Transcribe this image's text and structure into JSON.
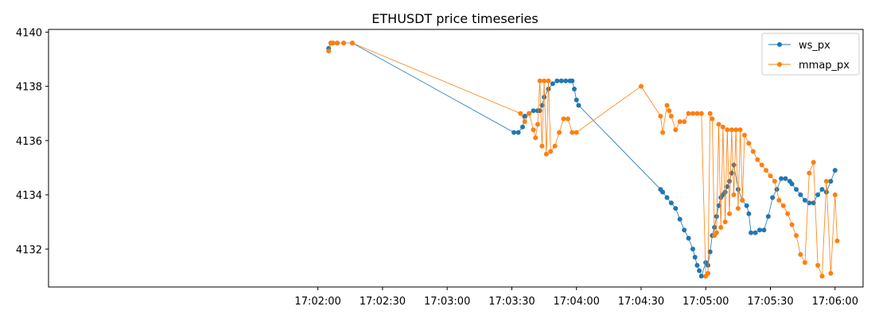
{
  "chart_data": {
    "type": "line",
    "title": "ETHUSDT price timeseries",
    "xlabel": "",
    "ylabel": "",
    "x_ticks": [
      "17:02:00",
      "17:02:30",
      "17:03:00",
      "17:03:30",
      "17:04:00",
      "17:04:30",
      "17:05:00",
      "17:05:30",
      "17:06:00"
    ],
    "y_ticks": [
      4132,
      4134,
      4136,
      4138,
      4140
    ],
    "xlim": [
      "16:59:55",
      "17:06:13"
    ],
    "ylim": [
      4130.6,
      4140.1
    ],
    "grid": false,
    "legend_position": "top-right",
    "colors": {
      "ws_px": "#1f77b4",
      "mmap_px": "#ff7f0e"
    },
    "series": [
      {
        "name": "ws_px",
        "x": [
          "17:02:05",
          "17:02:06",
          "17:02:07",
          "17:02:09",
          "17:02:12",
          "17:02:16",
          "17:03:31",
          "17:03:33",
          "17:03:35",
          "17:03:36",
          "17:03:38",
          "17:03:40",
          "17:03:42",
          "17:03:43",
          "17:03:44",
          "17:03:45",
          "17:03:47",
          "17:03:49",
          "17:03:51",
          "17:03:53",
          "17:03:55",
          "17:03:57",
          "17:03:58",
          "17:03:59",
          "17:04:00",
          "17:04:01",
          "17:04:39",
          "17:04:40",
          "17:04:42",
          "17:04:44",
          "17:04:46",
          "17:04:48",
          "17:04:50",
          "17:04:52",
          "17:04:54",
          "17:04:55",
          "17:04:56",
          "17:04:57",
          "17:04:58",
          "17:05:00",
          "17:05:01",
          "17:05:02",
          "17:05:03",
          "17:05:04",
          "17:05:05",
          "17:05:06",
          "17:05:07",
          "17:05:08",
          "17:05:09",
          "17:05:10",
          "17:05:11",
          "17:05:12",
          "17:05:13",
          "17:05:15",
          "17:05:17",
          "17:05:19",
          "17:05:20",
          "17:05:21",
          "17:05:23",
          "17:05:25",
          "17:05:27",
          "17:05:29",
          "17:05:31",
          "17:05:33",
          "17:05:35",
          "17:05:37",
          "17:05:39",
          "17:05:40",
          "17:05:42",
          "17:05:44",
          "17:05:46",
          "17:05:48",
          "17:05:50",
          "17:05:52",
          "17:05:54",
          "17:05:56",
          "17:05:58",
          "17:06:00"
        ],
        "y": [
          4139.4,
          4139.6,
          4139.6,
          4139.6,
          4139.6,
          4139.6,
          4136.3,
          4136.3,
          4136.5,
          4136.9,
          4137.0,
          4137.1,
          4137.1,
          4137.1,
          4137.3,
          4137.6,
          4137.9,
          4138.1,
          4138.2,
          4138.2,
          4138.2,
          4138.2,
          4138.2,
          4137.9,
          4137.5,
          4137.3,
          4134.2,
          4134.1,
          4133.9,
          4133.7,
          4133.5,
          4133.1,
          4132.7,
          4132.4,
          4132.0,
          4131.7,
          4131.4,
          4131.2,
          4131.0,
          4131.5,
          4131.4,
          4131.9,
          4132.5,
          4132.8,
          4133.2,
          4133.6,
          4133.9,
          4134.0,
          4134.1,
          4134.3,
          4134.5,
          4134.8,
          4135.1,
          4134.2,
          4133.8,
          4133.6,
          4133.3,
          4132.6,
          4132.6,
          4132.7,
          4132.7,
          4133.2,
          4133.9,
          4134.2,
          4134.6,
          4134.6,
          4134.5,
          4134.4,
          4134.2,
          4134.0,
          4133.8,
          4133.7,
          4133.7,
          4134.0,
          4134.2,
          4134.1,
          4134.5,
          4134.9
        ]
      },
      {
        "name": "mmap_px",
        "x": [
          "17:02:05",
          "17:02:06",
          "17:02:07",
          "17:02:09",
          "17:02:12",
          "17:02:16",
          "17:03:34",
          "17:03:36",
          "17:03:38",
          "17:03:40",
          "17:03:41",
          "17:03:42",
          "17:03:43",
          "17:03:44",
          "17:03:45",
          "17:03:46",
          "17:03:47",
          "17:03:48",
          "17:03:50",
          "17:03:52",
          "17:03:54",
          "17:03:56",
          "17:03:58",
          "17:04:00",
          "17:04:30",
          "17:04:39",
          "17:04:40",
          "17:04:42",
          "17:04:43",
          "17:04:44",
          "17:04:46",
          "17:04:48",
          "17:04:50",
          "17:04:52",
          "17:04:54",
          "17:04:56",
          "17:04:58",
          "17:05:00",
          "17:05:01",
          "17:05:02",
          "17:05:03",
          "17:05:04",
          "17:05:05",
          "17:05:06",
          "17:05:07",
          "17:05:08",
          "17:05:09",
          "17:05:10",
          "17:05:11",
          "17:05:12",
          "17:05:13",
          "17:05:14",
          "17:05:15",
          "17:05:16",
          "17:05:17",
          "17:05:18",
          "17:05:20",
          "17:05:22",
          "17:05:24",
          "17:05:26",
          "17:05:28",
          "17:05:30",
          "17:05:32",
          "17:05:34",
          "17:05:36",
          "17:05:38",
          "17:05:40",
          "17:05:42",
          "17:05:44",
          "17:05:46",
          "17:05:48",
          "17:05:50",
          "17:05:52",
          "17:05:54",
          "17:05:56",
          "17:05:58",
          "17:06:00",
          "17:06:01"
        ],
        "y": [
          4139.3,
          4139.6,
          4139.6,
          4139.6,
          4139.6,
          4139.6,
          4137.0,
          4136.7,
          4137.0,
          4136.4,
          4136.1,
          4136.6,
          4138.2,
          4135.8,
          4138.2,
          4135.5,
          4138.2,
          4135.6,
          4135.8,
          4136.3,
          4136.8,
          4136.8,
          4136.3,
          4136.3,
          4138.0,
          4136.9,
          4136.3,
          4137.3,
          4137.1,
          4136.9,
          4136.4,
          4136.7,
          4136.7,
          4137.0,
          4137.0,
          4137.0,
          4137.0,
          4131.0,
          4131.1,
          4137.0,
          4136.8,
          4132.5,
          4132.6,
          4136.6,
          4132.8,
          4136.5,
          4133.0,
          4136.4,
          4133.3,
          4136.4,
          4134.0,
          4136.4,
          4133.5,
          4136.4,
          4133.8,
          4136.2,
          4135.9,
          4135.6,
          4135.3,
          4135.1,
          4134.9,
          4134.7,
          4134.5,
          4133.8,
          4133.6,
          4133.3,
          4132.9,
          4132.5,
          4131.8,
          4131.5,
          4134.8,
          4135.2,
          4131.4,
          4131.0,
          4134.5,
          4131.1,
          4134.0,
          4132.3
        ]
      }
    ]
  }
}
